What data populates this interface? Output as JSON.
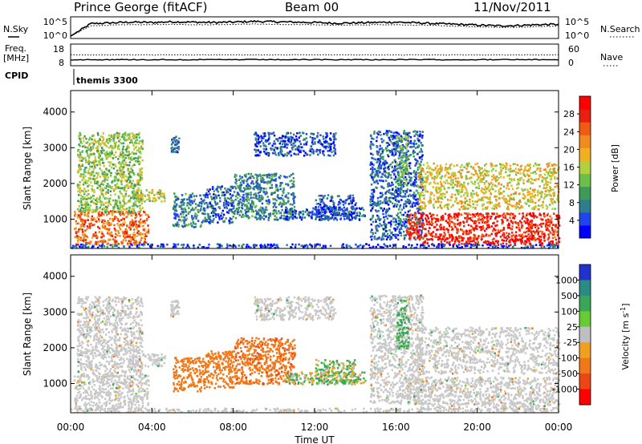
{
  "chart_data": {
    "type": "heatmap",
    "header": {
      "station": "Prince George (fitACF)",
      "beam": "Beam 00",
      "date": "11/Nov/2011"
    },
    "x_axis": {
      "label": "Time UT",
      "range_hours": [
        0,
        24
      ],
      "tick_hours": [
        0,
        4,
        8,
        12,
        16,
        20,
        24
      ],
      "tick_labels": [
        "00:00",
        "04:00",
        "08:00",
        "12:00",
        "16:00",
        "20:00",
        "00:00"
      ]
    },
    "noise_panel": {
      "left_label": "N.Sky",
      "right_label": "N.Search",
      "left_ticks": [
        "10^5",
        "10^0"
      ],
      "right_ticks": [
        "10^5",
        "10^0"
      ],
      "log_range": [
        0,
        5
      ],
      "sky_level_log": [
        0.2,
        3.6,
        3.8,
        4.0,
        3.9,
        4.1,
        4.0,
        3.9,
        4.0,
        4.2,
        4.1,
        4.0,
        3.9,
        3.7,
        3.8,
        3.9,
        4.0,
        3.8,
        3.6,
        3.4,
        3.2,
        3.0,
        3.1,
        3.3,
        3.4
      ],
      "search_level_log": [
        0.2,
        3.0,
        3.2,
        3.3,
        3.3,
        3.4,
        3.3,
        3.3,
        3.4,
        3.5,
        3.4,
        3.3,
        3.3,
        3.2,
        3.2,
        3.3,
        3.3,
        3.2,
        3.1,
        2.9,
        2.7,
        2.6,
        2.6,
        2.8,
        2.9
      ]
    },
    "freq_panel": {
      "left_label_lines": [
        "Freq.",
        "[MHz]"
      ],
      "right_label": "Nave",
      "left_ticks": [
        18,
        8
      ],
      "right_ticks": [
        60,
        0
      ],
      "freq_range": [
        8,
        18
      ],
      "freq_value": 10.8,
      "nave_value": 30
    },
    "cpid_panel": {
      "label": "CPID",
      "value": "themis 3300"
    },
    "power_panel": {
      "ylabel": "Slant Range [km]",
      "ylim": [
        180,
        4600
      ],
      "yticks": [
        1000,
        2000,
        3000,
        4000
      ],
      "colorbar_label": "Power [dB]",
      "colorbar_ticks": [
        4,
        8,
        12,
        16,
        20,
        24,
        28
      ],
      "colorbar_range": [
        0,
        32
      ],
      "colors": [
        "#0000ff",
        "#2244ee",
        "#2e7d8c",
        "#3e9a5a",
        "#6cc04a",
        "#b0d040",
        "#f0b020",
        "#f08c1e",
        "#f05a12",
        "#e82010",
        "#ff0000"
      ]
    },
    "velocity_panel": {
      "ylabel": "Slant Range [km]",
      "ylim": [
        180,
        4600
      ],
      "yticks": [
        1000,
        2000,
        3000,
        4000
      ],
      "colorbar_label": "Velocity [m s^-1]",
      "colorbar_ticks": [
        "1000",
        "500",
        "100",
        "25",
        "-25",
        "-100",
        "-500",
        "-1000"
      ],
      "colors": [
        "#2233cc",
        "#2c8a84",
        "#3aa65a",
        "#66cc33",
        "#bfbfbf",
        "#f0a020",
        "#f07818",
        "#ec4614",
        "#ff0000"
      ],
      "ground_scatter_color": "#c8c8c8"
    },
    "echo_regions": [
      {
        "t0": 0.15,
        "t1": 3.8,
        "r0": 300,
        "r1": 1250,
        "power": 24,
        "velocity": 0,
        "gs": true
      },
      {
        "t0": 0.3,
        "t1": 3.5,
        "r0": 1200,
        "r1": 3450,
        "power": 14,
        "velocity": 0,
        "gs": true
      },
      {
        "t0": 3.0,
        "t1": 4.6,
        "r0": 1500,
        "r1": 1850,
        "power": 16,
        "velocity": 0,
        "gs": true
      },
      {
        "t0": 5.0,
        "t1": 6.6,
        "r0": 800,
        "r1": 1750,
        "power": 8,
        "velocity": -300,
        "gs": false
      },
      {
        "t0": 4.9,
        "t1": 5.3,
        "r0": 2900,
        "r1": 3350,
        "power": 6,
        "velocity": 0,
        "gs": true
      },
      {
        "t0": 6.6,
        "t1": 8.0,
        "r0": 900,
        "r1": 1950,
        "power": 6,
        "velocity": -300,
        "gs": false
      },
      {
        "t0": 8.0,
        "t1": 11.0,
        "r0": 1000,
        "r1": 2300,
        "power": 8,
        "velocity": -400,
        "gs": false
      },
      {
        "t0": 9.0,
        "t1": 13.0,
        "r0": 2800,
        "r1": 3450,
        "power": 5,
        "velocity": 0,
        "gs": true
      },
      {
        "t0": 10.5,
        "t1": 14.5,
        "r0": 1000,
        "r1": 1350,
        "power": 5,
        "velocity": 50,
        "gs": false
      },
      {
        "t0": 12.0,
        "t1": 14.0,
        "r0": 1000,
        "r1": 1700,
        "power": 5,
        "velocity": 60,
        "gs": false
      },
      {
        "t0": 14.7,
        "t1": 17.3,
        "r0": 450,
        "r1": 3500,
        "power": 6,
        "velocity": 0,
        "gs": true
      },
      {
        "t0": 16.0,
        "t1": 16.6,
        "r0": 2000,
        "r1": 3350,
        "power": 12,
        "velocity": 150,
        "gs": false
      },
      {
        "t0": 16.5,
        "t1": 24.0,
        "r0": 450,
        "r1": 1200,
        "power": 28,
        "velocity": 0,
        "gs": true
      },
      {
        "t0": 17.2,
        "t1": 24.0,
        "r0": 300,
        "r1": 480,
        "power": 30,
        "velocity": 0,
        "gs": true
      },
      {
        "t0": 17.0,
        "t1": 24.0,
        "r0": 1300,
        "r1": 2600,
        "power": 18,
        "velocity": 0,
        "gs": true
      },
      {
        "t0": 0.0,
        "t1": 24.0,
        "r0": 220,
        "r1": 330,
        "power": 4,
        "velocity": 0,
        "gs": true
      }
    ]
  }
}
